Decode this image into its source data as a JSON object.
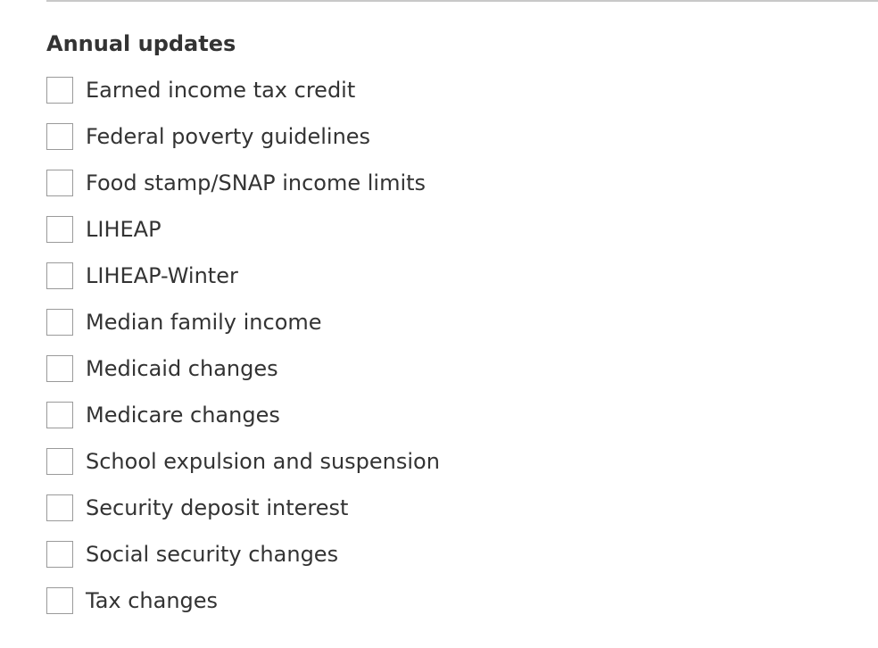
{
  "section": {
    "title": "Annual updates",
    "options": [
      {
        "label": "Earned income tax credit",
        "checked": false
      },
      {
        "label": "Federal poverty guidelines",
        "checked": false
      },
      {
        "label": "Food stamp/SNAP income limits",
        "checked": false
      },
      {
        "label": "LIHEAP",
        "checked": false
      },
      {
        "label": "LIHEAP-Winter",
        "checked": false
      },
      {
        "label": "Median family income",
        "checked": false
      },
      {
        "label": "Medicaid changes",
        "checked": false
      },
      {
        "label": "Medicare changes",
        "checked": false
      },
      {
        "label": "School expulsion and suspension",
        "checked": false
      },
      {
        "label": "Security deposit interest",
        "checked": false
      },
      {
        "label": "Social security changes",
        "checked": false
      },
      {
        "label": "Tax changes",
        "checked": false
      }
    ]
  },
  "colors": {
    "text": "#333333",
    "checkbox_border": "#9a9a9a",
    "divider": "#c8c8c8"
  }
}
